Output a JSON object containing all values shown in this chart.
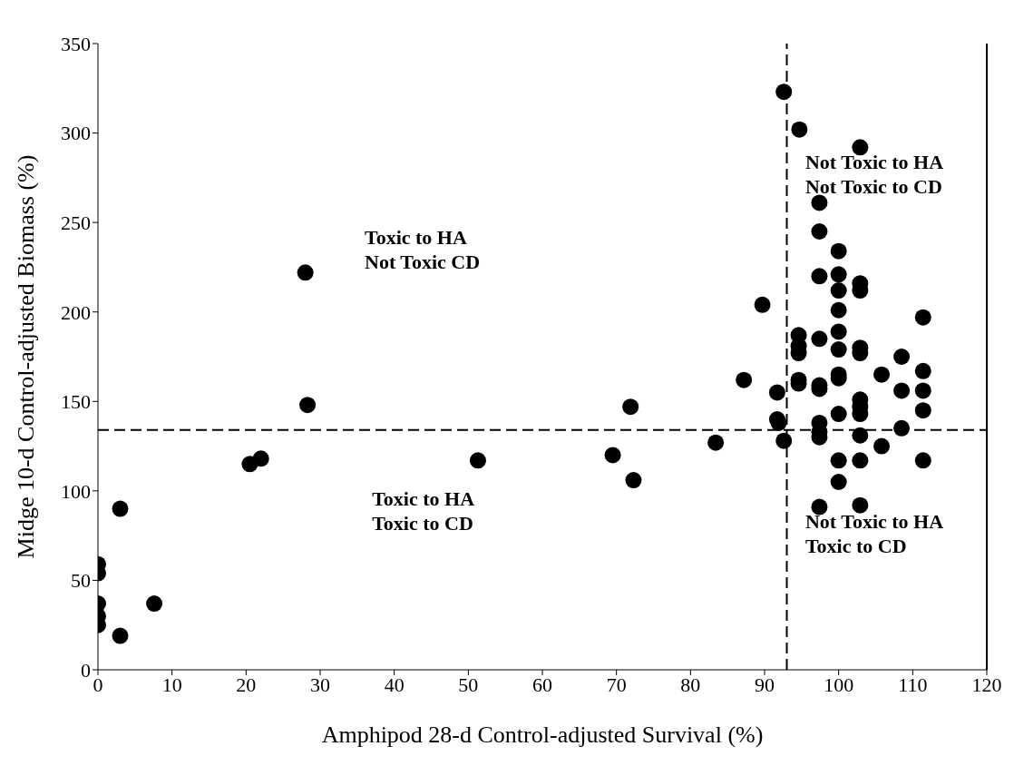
{
  "chart_data": {
    "type": "scatter",
    "xlabel": "Amphipod 28-d Control-adjusted Survival (%)",
    "ylabel": "Midge 10-d Control-adjusted Biomass (%)",
    "xlim": [
      0,
      120
    ],
    "xticks": [
      0,
      10,
      20,
      30,
      40,
      50,
      60,
      70,
      80,
      90,
      100,
      110,
      120
    ],
    "ylim": [
      0,
      350
    ],
    "yticks": [
      0,
      50,
      100,
      150,
      200,
      250,
      300,
      350
    ],
    "grid": false,
    "legend": false,
    "marker": "circle",
    "series": [
      {
        "color": "#000000",
        "x": [
          0,
          0,
          0,
          0,
          0,
          3,
          3,
          7.6,
          20.5,
          22,
          28,
          28.3,
          51.3,
          69.5,
          71.9,
          72.3,
          83.4,
          87.2,
          89.7,
          91.7,
          91.7,
          91.9,
          92.6,
          92.6,
          94.7,
          102.9,
          94.6,
          94.6,
          94.6,
          94.6,
          94.6,
          97.4,
          97.4,
          97.4,
          97.4,
          97.4,
          97.4,
          97.4,
          97.4,
          97.4,
          97.4,
          100,
          100,
          100,
          100,
          100,
          100,
          100,
          100,
          100,
          100,
          100,
          102.9,
          102.9,
          102.9,
          102.9,
          102.9,
          102.9,
          102.9,
          102.9,
          102.9,
          102.9,
          105.8,
          105.8,
          108.5,
          108.5,
          108.5,
          111.4,
          111.4,
          111.4,
          111.4,
          111.4
        ],
        "values": [
          59,
          54,
          37,
          30,
          25,
          90,
          19,
          37,
          115,
          118,
          222,
          148,
          117,
          120,
          147,
          106,
          127,
          162,
          204,
          155,
          140,
          138,
          128,
          323,
          302,
          292,
          187,
          162,
          181,
          177,
          160,
          261,
          245,
          220,
          185,
          159,
          157,
          138,
          133,
          130,
          91,
          234,
          221,
          212,
          201,
          189,
          179,
          165,
          163,
          143,
          117,
          105,
          216,
          212,
          180,
          177,
          151,
          147,
          143,
          131,
          117,
          92,
          165,
          125,
          175,
          156,
          135,
          197,
          167,
          156,
          145,
          117
        ]
      }
    ],
    "ref_lines": [
      {
        "axis": "x",
        "value": 93,
        "color": "#000000",
        "line_style": "dashed"
      },
      {
        "axis": "y",
        "value": 134,
        "color": "#000000",
        "line_style": "dashed"
      }
    ],
    "annotations": [
      "Toxic to HA\nNot Toxic CD",
      "Toxic to HA\nToxic to CD",
      "Not Toxic to HA\nNot Toxic to CD",
      "Not Toxic to HA\nToxic to CD"
    ]
  }
}
